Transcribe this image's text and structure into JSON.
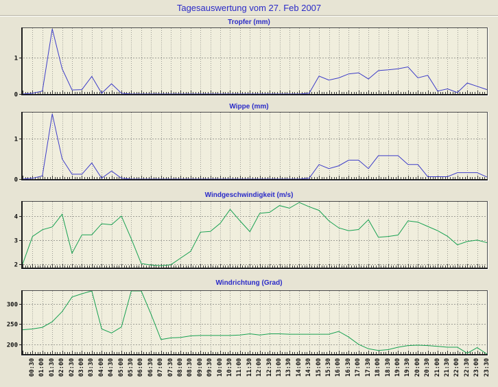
{
  "window": {
    "title": "Tagesauswertung vom 27. Feb 2007"
  },
  "colors": {
    "background": "#e7e4d4",
    "plot_background": "#f0eedd",
    "title_blue": "#2a2ac8",
    "blue_line": "#3c3cc8",
    "green_line": "#16a050",
    "grid": "#9c9c94",
    "axis_dark": "#1c1c1c",
    "axis_thin": "#4a4a4a",
    "tick_label": "#101010"
  },
  "x_axis": {
    "tick_labels": [
      "00:30",
      "01:00",
      "01:30",
      "02:00",
      "02:30",
      "03:00",
      "03:30",
      "04:00",
      "04:30",
      "05:00",
      "05:30",
      "06:00",
      "06:30",
      "07:00",
      "07:30",
      "08:00",
      "08:30",
      "09:00",
      "09:30",
      "10:00",
      "10:30",
      "11:00",
      "11:30",
      "12:00",
      "12:30",
      "13:00",
      "13:30",
      "14:00",
      "14:30",
      "15:00",
      "15:30",
      "16:00",
      "16:30",
      "17:00",
      "17:30",
      "18:00",
      "18:30",
      "19:00",
      "19:30",
      "20:00",
      "20:30",
      "21:00",
      "21:30",
      "22:00",
      "22:30",
      "23:00",
      "23:30"
    ]
  },
  "chart_data": [
    {
      "type": "line",
      "title": "Tropfer (mm)",
      "ylabel": "mm",
      "color_key": "blue_line",
      "ylim": [
        0,
        1.8
      ],
      "yticks": [
        0,
        1
      ],
      "values": [
        0,
        0.02,
        0.08,
        1.78,
        0.69,
        0.11,
        0.12,
        0.48,
        0.02,
        0.28,
        0.02,
        0,
        0,
        0,
        0,
        0,
        0,
        0,
        0,
        0,
        0,
        0,
        0,
        0,
        0,
        0,
        0,
        0,
        0,
        0.02,
        0.49,
        0.38,
        0.44,
        0.55,
        0.58,
        0.41,
        0.64,
        0.66,
        0.69,
        0.74,
        0.44,
        0.51,
        0.08,
        0.14,
        0.04,
        0.3,
        0.21,
        0.12
      ]
    },
    {
      "type": "line",
      "title": "Wippe (mm)",
      "ylabel": "mm",
      "color_key": "blue_line",
      "ylim": [
        0,
        1.65
      ],
      "yticks": [
        0,
        1
      ],
      "values": [
        0,
        0.02,
        0.08,
        1.62,
        0.5,
        0.12,
        0.12,
        0.4,
        0.02,
        0.2,
        0.02,
        0,
        0,
        0,
        0,
        0,
        0,
        0,
        0,
        0,
        0,
        0,
        0,
        0,
        0,
        0,
        0,
        0,
        0,
        0.02,
        0.36,
        0.26,
        0.33,
        0.47,
        0.47,
        0.26,
        0.58,
        0.58,
        0.58,
        0.36,
        0.36,
        0.06,
        0.06,
        0.06,
        0.16,
        0.16,
        0.16,
        0.05
      ]
    },
    {
      "type": "line",
      "title": "Windgeschwindigkeit (m/s)",
      "ylabel": "m/s",
      "color_key": "green_line",
      "ylim": [
        1.85,
        4.6
      ],
      "yticks": [
        2,
        3,
        4
      ],
      "values": [
        2.0,
        3.15,
        3.43,
        3.55,
        4.08,
        2.45,
        3.22,
        3.22,
        3.68,
        3.64,
        4.0,
        3.05,
        2.02,
        1.96,
        1.93,
        1.97,
        2.25,
        2.53,
        3.33,
        3.36,
        3.7,
        4.28,
        3.8,
        3.35,
        4.12,
        4.16,
        4.44,
        4.33,
        4.57,
        4.39,
        4.24,
        3.8,
        3.51,
        3.39,
        3.44,
        3.85,
        3.12,
        3.15,
        3.21,
        3.8,
        3.75,
        3.57,
        3.39,
        3.16,
        2.8,
        2.94,
        3.0,
        2.89
      ]
    },
    {
      "type": "line",
      "title": "Windrichtung (Grad)",
      "ylabel": "Grad",
      "color_key": "green_line",
      "ylim": [
        176,
        332
      ],
      "yticks": [
        200,
        250,
        300
      ],
      "values": [
        236,
        238,
        242,
        256,
        281,
        317,
        325,
        332,
        238,
        228,
        243,
        332,
        332,
        274,
        212,
        216,
        217,
        221,
        222,
        222,
        222,
        222,
        223,
        226,
        223,
        226,
        226,
        225,
        225,
        225,
        225,
        225,
        232,
        218,
        200,
        189,
        185,
        187,
        193,
        197,
        198,
        197,
        195,
        193,
        193,
        178,
        192,
        176
      ]
    }
  ]
}
